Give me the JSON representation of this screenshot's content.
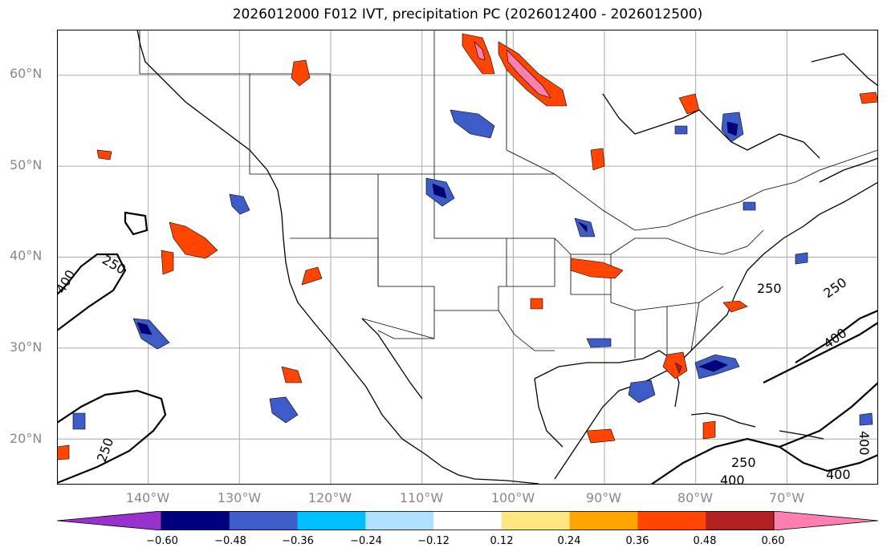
{
  "title": "2026012000 F012 IVT, precipitation PC (2026012400 - 2026012500)",
  "map": {
    "lon_range": [
      -150,
      -60
    ],
    "lat_range": [
      15,
      65
    ],
    "lat_labels": [
      {
        "value": 60,
        "text": "60°N"
      },
      {
        "value": 50,
        "text": "50°N"
      },
      {
        "value": 40,
        "text": "40°N"
      },
      {
        "value": 30,
        "text": "30°N"
      },
      {
        "value": 20,
        "text": "20°N"
      }
    ],
    "lon_labels": [
      {
        "value": -140,
        "text": "140°W"
      },
      {
        "value": -130,
        "text": "130°W"
      },
      {
        "value": -120,
        "text": "120°W"
      },
      {
        "value": -110,
        "text": "110°W"
      },
      {
        "value": -100,
        "text": "100°W"
      },
      {
        "value": -90,
        "text": "90°W"
      },
      {
        "value": -80,
        "text": "80°W"
      },
      {
        "value": -70,
        "text": "70°W"
      }
    ],
    "grid_color": "#aaaaaa",
    "ivt_contour_labels": [
      "250",
      "400"
    ]
  },
  "colorbar": {
    "ticks": [
      "−0.60",
      "−0.48",
      "−0.36",
      "−0.24",
      "−0.12",
      "0.12",
      "0.24",
      "0.36",
      "0.48",
      "0.60"
    ],
    "colors": [
      "#9932cc",
      "#00007f",
      "#3d5cc8",
      "#00bfff",
      "#b0e0ff",
      "#ffffff",
      "#ffe680",
      "#ffa500",
      "#ff4500",
      "#b22222",
      "#ff80b0"
    ],
    "extend": "both"
  }
}
